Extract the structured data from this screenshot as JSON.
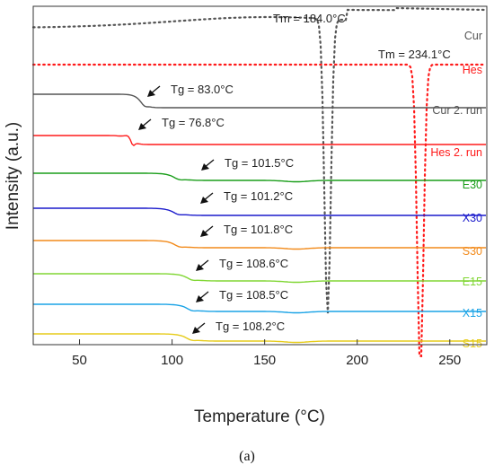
{
  "chart_data": {
    "type": "line",
    "xlabel": "Temperature (°C)",
    "ylabel": "Intensity (a.u.)",
    "xlim": [
      25,
      270
    ],
    "x_ticks": [
      50,
      100,
      150,
      200,
      250
    ],
    "y_ticks_shown": false,
    "grid": false,
    "legend": "labels at right end of each curve",
    "caption": "(a)",
    "series": [
      {
        "name": "Cur",
        "color": "#555555",
        "style": "dotted",
        "curve": "melt",
        "tm": 184.0,
        "tm_label": "Tm = 184.0°C"
      },
      {
        "name": "Hes",
        "color": "#ff1a1a",
        "style": "dotted",
        "curve": "melt",
        "tm": 234.1,
        "tm_label": "Tm = 234.1°C"
      },
      {
        "name": "Cur 2. run",
        "color": "#555555",
        "style": "solid",
        "curve": "glass",
        "tg": 83.0,
        "tg_label": "Tg = 83.0°C"
      },
      {
        "name": "Hes 2. run",
        "color": "#ff1a1a",
        "style": "solid",
        "curve": "glass",
        "tg": 76.8,
        "tg_label": "Tg = 76.8°C"
      },
      {
        "name": "E30",
        "color": "#1a9e1a",
        "style": "solid",
        "curve": "glass",
        "tg": 101.5,
        "tg_label": "Tg = 101.5°C"
      },
      {
        "name": "X30",
        "color": "#1a1acc",
        "style": "solid",
        "curve": "glass",
        "tg": 101.2,
        "tg_label": "Tg = 101.2°C"
      },
      {
        "name": "S30",
        "color": "#f28a1a",
        "style": "solid",
        "curve": "glass",
        "tg": 101.8,
        "tg_label": "Tg = 101.8°C"
      },
      {
        "name": "E15",
        "color": "#80d633",
        "style": "solid",
        "curve": "glass",
        "tg": 108.6,
        "tg_label": "Tg = 108.6°C"
      },
      {
        "name": "X15",
        "color": "#1aa3e6",
        "style": "solid",
        "curve": "glass",
        "tg": 108.5,
        "tg_label": "Tg = 108.5°C"
      },
      {
        "name": "S15",
        "color": "#e6cc1a",
        "style": "solid",
        "curve": "glass",
        "tg": 108.2,
        "tg_label": "Tg = 108.2°C"
      }
    ]
  }
}
